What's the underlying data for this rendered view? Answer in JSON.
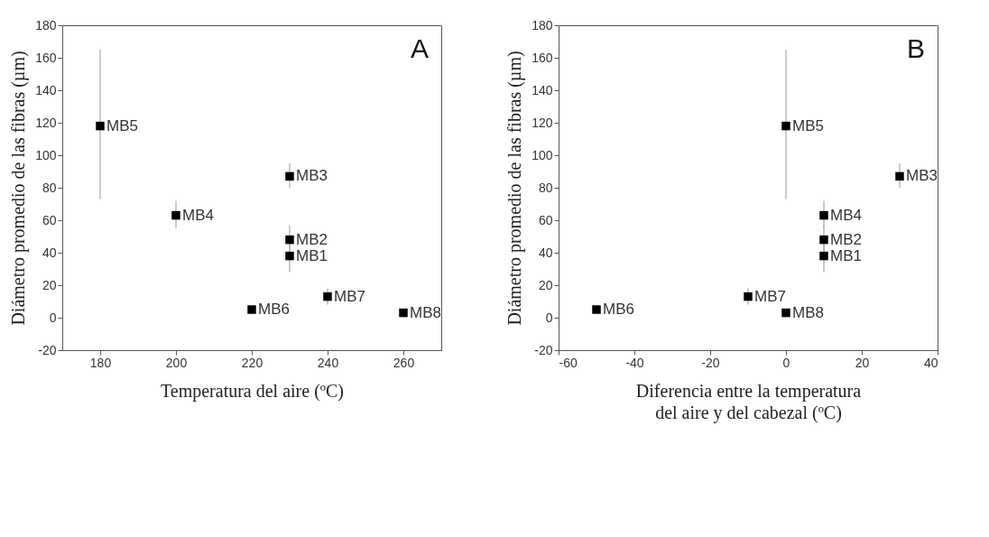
{
  "chart_data": [
    {
      "type": "scatter",
      "xlabel": "Temperatura del aire (ºC)",
      "ylabel": "Diámetro promedio de las fibras (µm)",
      "annotations": [
        "A"
      ],
      "x": [
        230,
        230,
        230,
        200,
        180,
        220,
        240,
        260
      ],
      "series": [
        {
          "color": "#000000",
          "values": [
            38,
            48,
            87,
            63,
            118,
            5,
            13,
            3
          ],
          "errors": [
            [
              28,
              46
            ],
            [
              40,
              57
            ],
            [
              80,
              95
            ],
            [
              55,
              72
            ],
            [
              73,
              165
            ],
            null,
            [
              8,
              18
            ],
            null
          ],
          "value_labels": [
            "MB1",
            "MB2",
            "MB3",
            "MB4",
            "MB5",
            "MB6",
            "MB7",
            "MB8"
          ]
        }
      ],
      "xlim": [
        170,
        270
      ],
      "xticks": [
        180,
        200,
        220,
        240,
        260
      ],
      "ylim": [
        -20,
        180
      ],
      "yticks": [
        -20,
        0,
        20,
        40,
        60,
        80,
        100,
        120,
        140,
        160,
        180
      ],
      "marker": "square",
      "grid": false
    },
    {
      "type": "scatter",
      "xlabel": "Diferencia entre la temperatura del aire y del cabezal (ºC)",
      "ylabel": "Diámetro promedio de las fibras (µm)",
      "annotations": [
        "B"
      ],
      "x": [
        10,
        10,
        30,
        10,
        0,
        -50,
        -10,
        0
      ],
      "series": [
        {
          "color": "#000000",
          "values": [
            38,
            48,
            87,
            63,
            118,
            5,
            13,
            3
          ],
          "errors": [
            [
              28,
              46
            ],
            [
              40,
              57
            ],
            [
              80,
              95
            ],
            [
              55,
              72
            ],
            [
              73,
              165
            ],
            null,
            [
              8,
              18
            ],
            null
          ],
          "value_labels": [
            "MB1",
            "MB2",
            "MB3",
            "MB4",
            "MB5",
            "MB6",
            "MB7",
            "MB8"
          ]
        }
      ],
      "xlim": [
        -60,
        40
      ],
      "xticks": [
        -60,
        -40,
        -20,
        0,
        20,
        40
      ],
      "ylim": [
        -20,
        180
      ],
      "yticks": [
        -20,
        0,
        20,
        40,
        60,
        80,
        100,
        120,
        140,
        160,
        180
      ],
      "marker": "square",
      "grid": false
    }
  ]
}
